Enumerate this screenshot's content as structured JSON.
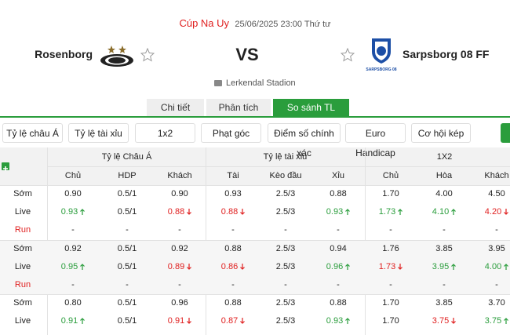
{
  "header": {
    "competition": "Cúp Na Uy",
    "datetime": "25/06/2025 23:00 Thứ tư",
    "home_team": "Rosenborg",
    "vs": "VS",
    "away_team": "Sarpsborg 08 FF",
    "away_logo_text": "SARPSBORG 08",
    "venue": "Lerkendal Stadion"
  },
  "tabs": [
    {
      "label": "Chi tiết"
    },
    {
      "label": "Phân tích"
    },
    {
      "label": "So sánh TL",
      "active": true
    }
  ],
  "filters": [
    "Tỷ lệ châu Á",
    "Tỷ lệ tài xỉu",
    "1x2",
    "Phạt góc",
    "Điểm số chính xác",
    "Euro Handicap",
    "Cơ hội kép"
  ],
  "table": {
    "groups": [
      "Tỷ lệ Châu Á",
      "Tỷ lệ tài xỉu",
      "1X2"
    ],
    "columns": [
      "Chủ",
      "HDP",
      "Khách",
      "Tài",
      "Kèo đầu",
      "Xỉu",
      "Chủ",
      "Hòa",
      "Khách"
    ],
    "blocks": [
      {
        "rows": [
          {
            "label": "Sớm",
            "cells": [
              {
                "text": "0.90"
              },
              {
                "text": "0.5/1"
              },
              {
                "text": "0.90"
              },
              {
                "text": "0.93"
              },
              {
                "text": "2.5/3"
              },
              {
                "text": "0.88"
              },
              {
                "text": "1.70"
              },
              {
                "text": "4.00"
              },
              {
                "text": "4.50"
              }
            ]
          },
          {
            "label": "Live",
            "cells": [
              {
                "text": "0.93",
                "trend": "up"
              },
              {
                "text": "0.5/1"
              },
              {
                "text": "0.88",
                "trend": "down"
              },
              {
                "text": "0.88",
                "trend": "down"
              },
              {
                "text": "2.5/3"
              },
              {
                "text": "0.93",
                "trend": "up"
              },
              {
                "text": "1.73",
                "trend": "up"
              },
              {
                "text": "4.10",
                "trend": "up"
              },
              {
                "text": "4.20",
                "trend": "down"
              }
            ]
          },
          {
            "label": "Run",
            "cells": [
              {
                "text": "-"
              },
              {
                "text": "-"
              },
              {
                "text": "-"
              },
              {
                "text": "-"
              },
              {
                "text": "-"
              },
              {
                "text": "-"
              },
              {
                "text": "-"
              },
              {
                "text": "-"
              },
              {
                "text": "-"
              }
            ]
          }
        ]
      },
      {
        "rows": [
          {
            "label": "Sớm",
            "cells": [
              {
                "text": "0.92"
              },
              {
                "text": "0.5/1"
              },
              {
                "text": "0.92"
              },
              {
                "text": "0.88"
              },
              {
                "text": "2.5/3"
              },
              {
                "text": "0.94"
              },
              {
                "text": "1.76"
              },
              {
                "text": "3.85"
              },
              {
                "text": "3.95"
              }
            ]
          },
          {
            "label": "Live",
            "cells": [
              {
                "text": "0.95",
                "trend": "up"
              },
              {
                "text": "0.5/1"
              },
              {
                "text": "0.89",
                "trend": "down"
              },
              {
                "text": "0.86",
                "trend": "down"
              },
              {
                "text": "2.5/3"
              },
              {
                "text": "0.96",
                "trend": "up"
              },
              {
                "text": "1.73",
                "trend": "down"
              },
              {
                "text": "3.95",
                "trend": "up"
              },
              {
                "text": "4.00",
                "trend": "up"
              }
            ]
          },
          {
            "label": "Run",
            "cells": [
              {
                "text": "-"
              },
              {
                "text": "-"
              },
              {
                "text": "-"
              },
              {
                "text": "-"
              },
              {
                "text": "-"
              },
              {
                "text": "-"
              },
              {
                "text": "-"
              },
              {
                "text": "-"
              },
              {
                "text": "-"
              }
            ]
          }
        ]
      },
      {
        "rows": [
          {
            "label": "Sớm",
            "cells": [
              {
                "text": "0.80"
              },
              {
                "text": "0.5/1"
              },
              {
                "text": "0.96"
              },
              {
                "text": "0.88"
              },
              {
                "text": "2.5/3"
              },
              {
                "text": "0.88"
              },
              {
                "text": "1.70"
              },
              {
                "text": "3.85"
              },
              {
                "text": "3.70"
              }
            ]
          },
          {
            "label": "Live",
            "cells": [
              {
                "text": "0.91",
                "trend": "up"
              },
              {
                "text": "0.5/1"
              },
              {
                "text": "0.91",
                "trend": "down"
              },
              {
                "text": "0.87",
                "trend": "down"
              },
              {
                "text": "2.5/3"
              },
              {
                "text": "0.93",
                "trend": "up"
              },
              {
                "text": "1.70"
              },
              {
                "text": "3.75",
                "trend": "down"
              },
              {
                "text": "3.75",
                "trend": "up"
              }
            ]
          }
        ]
      }
    ]
  }
}
